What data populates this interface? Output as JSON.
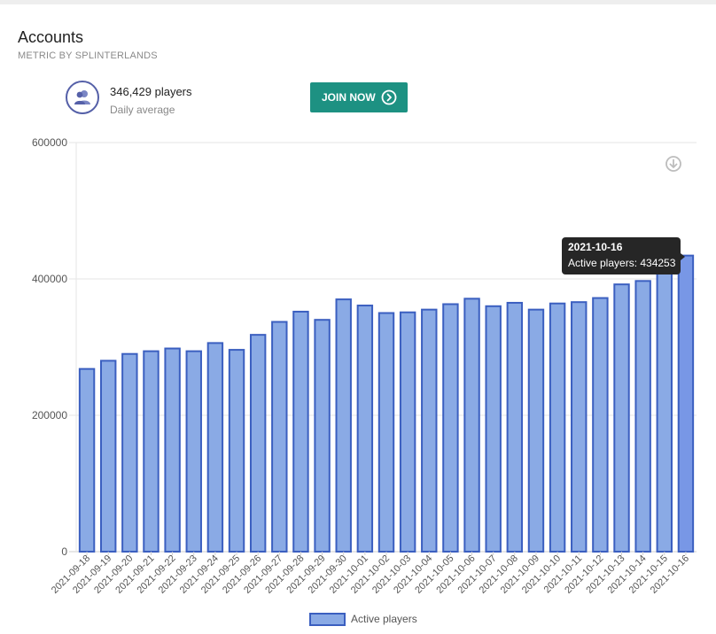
{
  "header": {
    "title": "Accounts",
    "subtitle": "METRIC BY SPLINTERLANDS"
  },
  "stat": {
    "value": "346,429 players",
    "label": "Daily average",
    "icon": "users-icon"
  },
  "join_button": {
    "label": "JOIN NOW",
    "icon": "chevron-right-circle-icon",
    "color": "#1d9182"
  },
  "download_icon": "download-icon",
  "tooltip": {
    "date": "2021-10-16",
    "text": "Active players: 434253"
  },
  "chart_data": {
    "type": "bar",
    "title": "",
    "xlabel": "",
    "ylabel": "",
    "ylim": [
      0,
      600000
    ],
    "yticks": [
      "0",
      "200000",
      "400000",
      "600000"
    ],
    "categories": [
      "2021-09-18",
      "2021-09-19",
      "2021-09-20",
      "2021-09-21",
      "2021-09-22",
      "2021-09-23",
      "2021-09-24",
      "2021-09-25",
      "2021-09-26",
      "2021-09-27",
      "2021-09-28",
      "2021-09-29",
      "2021-09-30",
      "2021-10-01",
      "2021-10-02",
      "2021-10-03",
      "2021-10-04",
      "2021-10-05",
      "2021-10-06",
      "2021-10-07",
      "2021-10-08",
      "2021-10-09",
      "2021-10-10",
      "2021-10-11",
      "2021-10-12",
      "2021-10-13",
      "2021-10-14",
      "2021-10-15",
      "2021-10-16"
    ],
    "series": [
      {
        "name": "Active players",
        "color": "#8aaae5",
        "border": "#3b5fc0",
        "values": [
          268000,
          280000,
          290000,
          294000,
          298000,
          294000,
          306000,
          296000,
          318000,
          337000,
          352000,
          340000,
          370000,
          361000,
          350000,
          351000,
          355000,
          363000,
          371000,
          360000,
          365000,
          355000,
          364000,
          366000,
          372000,
          392000,
          397000,
          415000,
          434253
        ]
      }
    ],
    "legend": "bottom",
    "grid": true,
    "highlighted_index": 28
  }
}
